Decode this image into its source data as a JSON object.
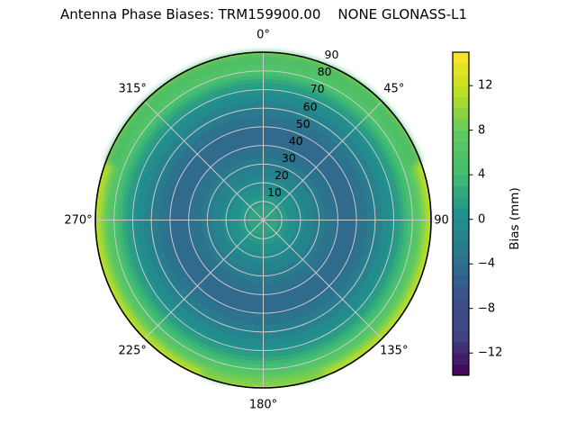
{
  "title": "Antenna Phase Biases: TRM159900.00    NONE GLONASS-L1",
  "polar": {
    "grid_color": "#cbcbcb",
    "edge_color": "#000000",
    "rlabel_angle_deg": 22.5,
    "angular_labels": [
      {
        "deg": 0,
        "label": "0°"
      },
      {
        "deg": 45,
        "label": "45°"
      },
      {
        "deg": 90,
        "label": "90"
      },
      {
        "deg": 135,
        "label": "135°"
      },
      {
        "deg": 180,
        "label": "180°"
      },
      {
        "deg": 225,
        "label": "225°"
      },
      {
        "deg": 270,
        "label": "270°"
      },
      {
        "deg": 315,
        "label": "315°"
      }
    ],
    "radial_labels": [
      {
        "deg": 10,
        "label": "10"
      },
      {
        "deg": 20,
        "label": "20"
      },
      {
        "deg": 30,
        "label": "30"
      },
      {
        "deg": 40,
        "label": "40"
      },
      {
        "deg": 50,
        "label": "50"
      },
      {
        "deg": 60,
        "label": "60"
      },
      {
        "deg": 70,
        "label": "70"
      },
      {
        "deg": 80,
        "label": "80"
      },
      {
        "deg": 90,
        "label": "90"
      }
    ],
    "face_bands": [
      {
        "from": 0,
        "to": 8.9,
        "color": "#2fa382"
      },
      {
        "from": 8.9,
        "to": 14.4,
        "color": "#299a87"
      },
      {
        "from": 14.4,
        "to": 19.7,
        "color": "#23918c"
      },
      {
        "from": 19.7,
        "to": 25.0,
        "color": "#238a8d"
      },
      {
        "from": 25.0,
        "to": 30.6,
        "color": "#26838d"
      },
      {
        "from": 30.6,
        "to": 36.8,
        "color": "#287c8e"
      },
      {
        "from": 36.8,
        "to": 43.2,
        "color": "#2c748e"
      },
      {
        "from": 43.2,
        "to": 56.9,
        "color": "#306a8d"
      },
      {
        "from": 56.9,
        "to": 62.3,
        "color": "#2c748e"
      },
      {
        "from": 62.3,
        "to": 66.2,
        "color": "#287c8e"
      },
      {
        "from": 66.2,
        "to": 70.8,
        "color": "#26838d"
      },
      {
        "from": 70.8,
        "to": 75.0,
        "color": "#238a8d"
      },
      {
        "from": 75.0,
        "to": 78.7,
        "color": "#21918c"
      },
      {
        "from": 78.7,
        "to": 81.7,
        "color": "#2a9e84"
      },
      {
        "from": 81.7,
        "to": 84.0,
        "color": "#34aa7c"
      },
      {
        "from": 84.0,
        "to": 86.2,
        "color": "#3db775"
      },
      {
        "from": 86.2,
        "to": 88.1,
        "color": "#46c06e"
      },
      {
        "from": 88.1,
        "to": 90.0,
        "color": "#4dc26a"
      },
      {
        "from": 90.0,
        "to": 91.8,
        "color": "#55c566"
      },
      {
        "from": 91.8,
        "to": 93.4,
        "color": "#5cc863"
      },
      {
        "from": 93.4,
        "to": 95.1,
        "color": "#71cd55"
      },
      {
        "from": 95.1,
        "to": 96.7,
        "color": "#8bd345"
      },
      {
        "from": 96.7,
        "to": 98.6,
        "color": "#a6d934"
      },
      {
        "from": 98.6,
        "to": 100,
        "color": "#bfdf26"
      }
    ],
    "rim_tints": [
      {
        "from_az": -70,
        "to_az": 70,
        "color": "rgba(62,185,110,0.80)",
        "width": 15
      },
      {
        "from_az": 158,
        "to_az": 202,
        "color": "rgba(85,198,95,0.50)",
        "width": 12
      }
    ]
  },
  "colorbar": {
    "label": "Bias (mm)",
    "vmin": -14,
    "vmax": 15,
    "ticks": [
      {
        "value": 12,
        "label": "12"
      },
      {
        "value": 8,
        "label": "8"
      },
      {
        "value": 4,
        "label": "4"
      },
      {
        "value": 0,
        "label": "0"
      },
      {
        "value": -4,
        "label": "−4"
      },
      {
        "value": -8,
        "label": "−8"
      },
      {
        "value": -12,
        "label": "−12"
      }
    ],
    "band_colors_bottom_to_top": [
      "#440a5b",
      "#431d69",
      "#422f77",
      "#414285",
      "#404788",
      "#3e4b89",
      "#3c4f8a",
      "#3a558b",
      "#355f8c",
      "#30698d",
      "#2c748e",
      "#287c8e",
      "#26838d",
      "#238a8d",
      "#21918c",
      "#2a9e84",
      "#34aa7c",
      "#3db775",
      "#46c06e",
      "#4dc26a",
      "#55c566",
      "#5cc863",
      "#71cd55",
      "#8bd345",
      "#a6d934",
      "#bfdf26",
      "#d1e125",
      "#e2e325",
      "#f4e625"
    ]
  },
  "chart_data": {
    "type": "heatmap",
    "projection": "polar",
    "title": "Antenna Phase Biases: TRM159900.00    NONE GLONASS-L1",
    "signal": "GLONASS-L1",
    "azimuth_deg_ticks": [
      0,
      45,
      90,
      135,
      180,
      225,
      270,
      315
    ],
    "zenith_deg_rings": [
      10,
      20,
      30,
      40,
      50,
      60,
      70,
      80,
      90
    ],
    "value_label": "Bias (mm)",
    "value_range_mm": [
      -14,
      15
    ],
    "contour_interval_mm": 1,
    "colormap": "viridis",
    "colorbar_ticks_mm": [
      -12,
      -8,
      -4,
      0,
      4,
      8,
      12
    ],
    "radial_profile_mm": [
      {
        "zenith_deg": 0,
        "bias": 2.5
      },
      {
        "zenith_deg": 10,
        "bias": 1.3
      },
      {
        "zenith_deg": 20,
        "bias": -0.6
      },
      {
        "zenith_deg": 30,
        "bias": -2.5
      },
      {
        "zenith_deg": 40,
        "bias": -4.2
      },
      {
        "zenith_deg": 45,
        "bias": -4.5
      },
      {
        "zenith_deg": 50,
        "bias": -4.2
      },
      {
        "zenith_deg": 55,
        "bias": -3.3
      },
      {
        "zenith_deg": 60,
        "bias": -1.9
      },
      {
        "zenith_deg": 65,
        "bias": -0.7
      },
      {
        "zenith_deg": 70,
        "bias": 0.7
      },
      {
        "zenith_deg": 75,
        "bias": 2.6
      },
      {
        "zenith_deg": 80,
        "bias": 5.3
      },
      {
        "zenith_deg": 85,
        "bias": 8.6
      },
      {
        "zenith_deg": 90,
        "bias": 11.0
      }
    ],
    "horizon_bias_by_azimuth_mm": {
      "0": 6,
      "45": 8,
      "90": 11.5,
      "135": 10,
      "180": 8,
      "225": 10,
      "270": 11.5,
      "315": 6.5
    },
    "layout": "bias depends mostly on zenith angle (concentric contour rings), legend colorbar at right"
  }
}
